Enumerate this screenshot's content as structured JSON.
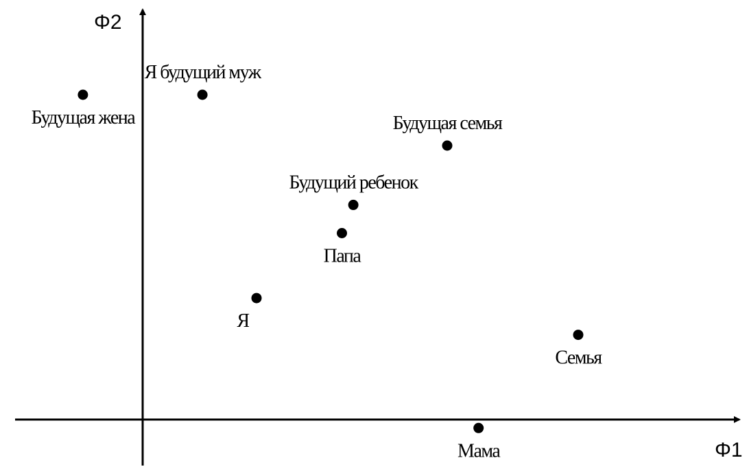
{
  "chart_data": {
    "type": "scatter",
    "title": "",
    "xlabel": "Φ1",
    "ylabel": "Φ2",
    "xlim": [
      -0.36,
      1.65
    ],
    "ylim": [
      -0.18,
      1.42
    ],
    "grid": false,
    "legend": "none",
    "colors": {
      "axis": "#000000",
      "point": "#000000",
      "text": "#000000"
    },
    "points": [
      {
        "label": "Будущая жена",
        "x": -0.21,
        "y": 1.15,
        "label_pos": "below"
      },
      {
        "label": "Я будущий муж",
        "x": 0.21,
        "y": 1.15,
        "label_pos": "above"
      },
      {
        "label": "Будущая семья",
        "x": 1.07,
        "y": 0.97,
        "label_pos": "above"
      },
      {
        "label": "Будущий ребенок",
        "x": 0.74,
        "y": 0.76,
        "label_pos": "above"
      },
      {
        "label": "Папа",
        "x": 0.7,
        "y": 0.66,
        "label_pos": "below"
      },
      {
        "label": "Я",
        "x": 0.4,
        "y": 0.43,
        "label_pos": "below-left"
      },
      {
        "label": "Семья",
        "x": 1.53,
        "y": 0.3,
        "label_pos": "below"
      },
      {
        "label": "Мама",
        "x": 1.18,
        "y": -0.03,
        "label_pos": "below"
      }
    ]
  }
}
